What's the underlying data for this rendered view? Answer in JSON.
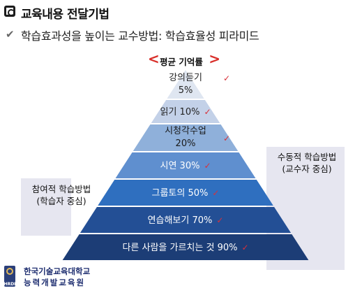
{
  "header": {
    "title": "교육내용 전달기법",
    "subtitle": "학습효과성을 높이는 교수방법: 학습효율성 피라미드",
    "title_icon": "copyright-like-c-icon",
    "bullet_icon": "checkmark-icon"
  },
  "pyramid": {
    "avg_label": "평균 기억률",
    "bracket_color": "#d9302b",
    "tiers": [
      {
        "label": "강의듣기",
        "percent": "5%",
        "color": "#dfe6f1",
        "text_color": "#222222"
      },
      {
        "label": "읽기",
        "percent": "10%",
        "color": "#c3d1e8",
        "text_color": "#222222"
      },
      {
        "label": "시청각수업",
        "percent": "20%",
        "color": "#8fb0da",
        "text_color": "#1a1a1a"
      },
      {
        "label": "시연",
        "percent": "30%",
        "color": "#5f8fcf",
        "text_color": "#ffffff"
      },
      {
        "label": "그룹토의",
        "percent": "50%",
        "color": "#2f6fbf",
        "text_color": "#ffffff"
      },
      {
        "label": "연습해보기",
        "percent": "70%",
        "color": "#234f95",
        "text_color": "#ffffff"
      },
      {
        "label": "다른 사람을 가르치는 것",
        "percent": "90%",
        "color": "#1c3d76",
        "text_color": "#ffffff"
      }
    ],
    "tick_mark": "✓"
  },
  "side_labels": {
    "passive": [
      "수동적 학습방법",
      "(교수자 중심)"
    ],
    "active": [
      "참여적 학습방법",
      "(학습자 중심)"
    ]
  },
  "footer": {
    "org_line1": "한국기술교육대학교",
    "org_line2": "능력개발교육원",
    "logo_text": "HRDI"
  }
}
